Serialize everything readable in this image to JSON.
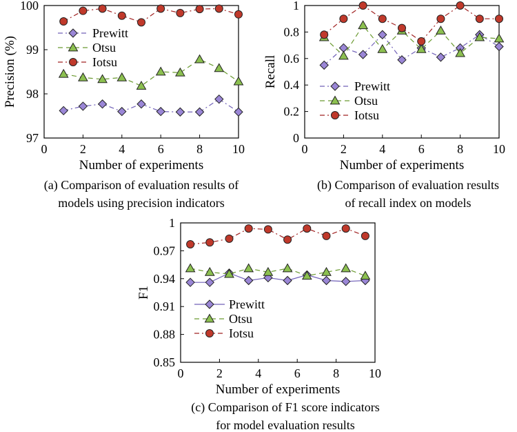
{
  "colors": {
    "Prewitt": {
      "stroke": "#7060b8",
      "fill": "#9a86d6"
    },
    "Otsu": {
      "stroke": "#6a9a30",
      "fill": "#8cc050"
    },
    "Iotsu": {
      "stroke": "#a02020",
      "fill": "#c0392b"
    }
  },
  "chart_data": [
    {
      "id": "a",
      "type": "line",
      "xlabel": "Number of experiments",
      "ylabel": "Precision (%)",
      "caption": [
        "(a) Comparison of evaluation results of",
        "models using precision indicators"
      ],
      "xlim": [
        0,
        10
      ],
      "ylim": [
        97,
        100
      ],
      "xticks": [
        0,
        2,
        4,
        6,
        8,
        10
      ],
      "yticks": [
        97,
        98,
        99,
        100
      ],
      "ytick_labels": [
        "97",
        "98",
        "99",
        "100"
      ],
      "legend": "upper-left",
      "series": [
        {
          "name": "Prewitt",
          "marker": "diamond",
          "dash": "dashdot",
          "x": [
            1,
            2,
            3,
            4,
            5,
            6,
            7,
            8,
            9,
            10
          ],
          "y": [
            97.62,
            97.72,
            97.77,
            97.6,
            97.77,
            97.6,
            97.59,
            97.59,
            97.88,
            97.59
          ]
        },
        {
          "name": "Otsu",
          "marker": "triangle",
          "dash": "dashed",
          "x": [
            1,
            2,
            3,
            4,
            5,
            6,
            7,
            8,
            9,
            10
          ],
          "y": [
            98.45,
            98.37,
            98.33,
            98.37,
            98.18,
            98.5,
            98.48,
            98.78,
            98.58,
            98.28
          ]
        },
        {
          "name": "Iotsu",
          "marker": "circle",
          "dash": "dashdot",
          "x": [
            1,
            2,
            3,
            4,
            5,
            6,
            7,
            8,
            9,
            10
          ],
          "y": [
            99.64,
            99.88,
            99.93,
            99.77,
            99.62,
            99.93,
            99.83,
            99.92,
            99.93,
            99.8
          ]
        }
      ]
    },
    {
      "id": "b",
      "type": "line",
      "xlabel": "Number of experiments",
      "ylabel": "Recall",
      "caption": [
        "(b) Comparison of evaluation results",
        "of recall index on models"
      ],
      "xlim": [
        0,
        10
      ],
      "ylim": [
        0,
        1
      ],
      "xticks": [
        0,
        2,
        4,
        6,
        8,
        10
      ],
      "yticks": [
        0,
        0.2,
        0.4,
        0.6,
        0.8,
        1
      ],
      "ytick_labels": [
        "0",
        "0.2",
        "0.4",
        "0.6",
        "0.8",
        "1"
      ],
      "legend": "lower-left",
      "series": [
        {
          "name": "Prewitt",
          "marker": "diamond",
          "dash": "dashdot",
          "x": [
            1,
            2,
            3,
            4,
            5,
            6,
            7,
            8,
            9,
            10
          ],
          "y": [
            0.55,
            0.68,
            0.63,
            0.78,
            0.59,
            0.68,
            0.61,
            0.68,
            0.78,
            0.69
          ]
        },
        {
          "name": "Otsu",
          "marker": "triangle",
          "dash": "dashed",
          "x": [
            1,
            2,
            3,
            4,
            5,
            6,
            7,
            8,
            9,
            10
          ],
          "y": [
            0.76,
            0.62,
            0.85,
            0.67,
            0.81,
            0.67,
            0.81,
            0.64,
            0.76,
            0.75
          ]
        },
        {
          "name": "Iotsu",
          "marker": "circle",
          "dash": "dashdot",
          "x": [
            1,
            2,
            3,
            4,
            5,
            6,
            7,
            8,
            9,
            10
          ],
          "y": [
            0.78,
            0.9,
            1.0,
            0.9,
            0.83,
            0.73,
            0.9,
            1.0,
            0.9,
            0.9
          ]
        }
      ]
    },
    {
      "id": "c",
      "type": "line",
      "xlabel": "Number of experiments",
      "ylabel": "F1",
      "caption": [
        "(c) Comparison of F1 score indicators",
        "for model evaluation results"
      ],
      "xlim": [
        0,
        10
      ],
      "ylim": [
        0.85,
        1
      ],
      "xticks": [
        0,
        2,
        4,
        6,
        8,
        10
      ],
      "yticks": [
        0.85,
        0.88,
        0.91,
        0.94,
        0.97,
        1
      ],
      "ytick_labels": [
        "0.85",
        "0.88",
        "0.91",
        "0.94",
        "0.97",
        "1"
      ],
      "legend": "center-left",
      "series": [
        {
          "name": "Prewitt",
          "marker": "diamond",
          "dash": "solid",
          "x": [
            0.5,
            1.5,
            2.5,
            3.5,
            4.5,
            5.5,
            6.5,
            7.5,
            8.5,
            9.5
          ],
          "y": [
            0.936,
            0.936,
            0.946,
            0.938,
            0.941,
            0.938,
            0.944,
            0.938,
            0.937,
            0.938
          ]
        },
        {
          "name": "Otsu",
          "marker": "triangle",
          "dash": "dashed",
          "x": [
            0.5,
            1.5,
            2.5,
            3.5,
            4.5,
            5.5,
            6.5,
            7.5,
            8.5,
            9.5
          ],
          "y": [
            0.951,
            0.947,
            0.945,
            0.951,
            0.947,
            0.951,
            0.943,
            0.947,
            0.951,
            0.943
          ]
        },
        {
          "name": "Iotsu",
          "marker": "circle",
          "dash": "dashdot",
          "x": [
            0.5,
            1.5,
            2.5,
            3.5,
            4.5,
            5.5,
            6.5,
            7.5,
            8.5,
            9.5
          ],
          "y": [
            0.977,
            0.979,
            0.983,
            0.994,
            0.993,
            0.982,
            0.994,
            0.986,
            0.994,
            0.986
          ]
        }
      ]
    }
  ]
}
